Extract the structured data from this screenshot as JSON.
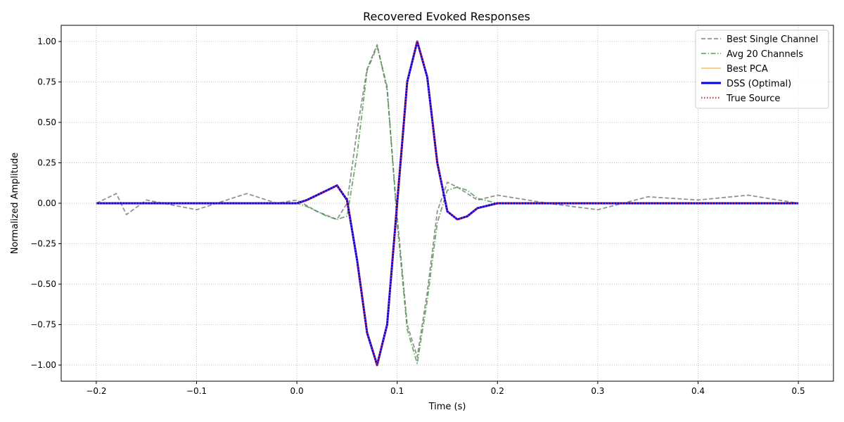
{
  "chart_data": {
    "type": "line",
    "title": "Recovered Evoked Responses",
    "xlabel": "Time (s)",
    "ylabel": "Normalized Amplitude",
    "xlim": [
      -0.235,
      0.535
    ],
    "ylim": [
      -1.1,
      1.1
    ],
    "xticks": [
      -0.2,
      -0.1,
      0.0,
      0.1,
      0.2,
      0.3,
      0.4,
      0.5
    ],
    "xtick_labels": [
      "−0.2",
      "−0.1",
      "0.0",
      "0.1",
      "0.2",
      "0.3",
      "0.4",
      "0.5"
    ],
    "yticks": [
      -1.0,
      -0.75,
      -0.5,
      -0.25,
      0.0,
      0.25,
      0.5,
      0.75,
      1.0
    ],
    "ytick_labels": [
      "−1.00",
      "−0.75",
      "−0.50",
      "−0.25",
      "0.00",
      "0.25",
      "0.50",
      "0.75",
      "1.00"
    ],
    "grid": true,
    "legend_position": "top-right",
    "series": [
      {
        "name": "Best Single Channel",
        "color": "#808080",
        "style": "dashed",
        "x": [
          -0.2,
          -0.18,
          -0.17,
          -0.15,
          -0.1,
          -0.05,
          -0.02,
          0.0,
          0.02,
          0.04,
          0.05,
          0.06,
          0.07,
          0.08,
          0.09,
          0.1,
          0.11,
          0.12,
          0.13,
          0.14,
          0.15,
          0.16,
          0.17,
          0.18,
          0.2,
          0.25,
          0.3,
          0.35,
          0.4,
          0.45,
          0.5
        ],
        "y": [
          0.0,
          0.06,
          -0.07,
          0.02,
          -0.04,
          0.06,
          0.0,
          0.02,
          -0.05,
          -0.1,
          0.0,
          0.45,
          0.83,
          0.98,
          0.7,
          -0.08,
          -0.75,
          -0.95,
          -0.55,
          -0.05,
          0.13,
          0.1,
          0.06,
          0.02,
          0.05,
          0.0,
          -0.04,
          0.04,
          0.02,
          0.05,
          0.0
        ]
      },
      {
        "name": "Avg 20 Channels",
        "color": "#3d8f3d",
        "style": "dashdot",
        "x": [
          -0.2,
          -0.1,
          0.0,
          0.01,
          0.02,
          0.03,
          0.04,
          0.05,
          0.06,
          0.07,
          0.08,
          0.09,
          0.1,
          0.11,
          0.12,
          0.13,
          0.14,
          0.15,
          0.16,
          0.17,
          0.18,
          0.2,
          0.3,
          0.4,
          0.5
        ],
        "y": [
          0.0,
          0.0,
          0.0,
          -0.02,
          -0.05,
          -0.08,
          -0.1,
          -0.08,
          0.3,
          0.82,
          0.97,
          0.72,
          -0.12,
          -0.78,
          -0.99,
          -0.6,
          -0.12,
          0.08,
          0.1,
          0.08,
          0.03,
          0.0,
          0.0,
          0.0,
          0.0
        ]
      },
      {
        "name": "Best PCA",
        "color": "#f5b841",
        "style": "solid",
        "x": [
          -0.2,
          -0.1,
          0.0,
          0.01,
          0.02,
          0.03,
          0.04,
          0.05,
          0.06,
          0.07,
          0.08,
          0.09,
          0.1,
          0.11,
          0.12,
          0.13,
          0.14,
          0.15,
          0.16,
          0.17,
          0.18,
          0.2,
          0.3,
          0.4,
          0.5
        ],
        "y": [
          0.0,
          0.0,
          0.0,
          0.02,
          0.05,
          0.08,
          0.11,
          0.02,
          -0.35,
          -0.8,
          -1.0,
          -0.75,
          0.0,
          0.75,
          1.0,
          0.78,
          0.25,
          -0.05,
          -0.1,
          -0.08,
          -0.03,
          0.0,
          0.0,
          0.0,
          0.0
        ]
      },
      {
        "name": "DSS (Optimal)",
        "color": "#0000ee",
        "style": "solid-thick",
        "x": [
          -0.2,
          -0.1,
          0.0,
          0.01,
          0.02,
          0.03,
          0.04,
          0.05,
          0.06,
          0.07,
          0.08,
          0.09,
          0.1,
          0.11,
          0.12,
          0.13,
          0.14,
          0.15,
          0.16,
          0.17,
          0.18,
          0.2,
          0.3,
          0.4,
          0.5
        ],
        "y": [
          0.0,
          0.0,
          0.0,
          0.02,
          0.05,
          0.08,
          0.11,
          0.02,
          -0.35,
          -0.8,
          -1.0,
          -0.75,
          0.0,
          0.75,
          1.0,
          0.78,
          0.25,
          -0.05,
          -0.1,
          -0.08,
          -0.03,
          0.0,
          0.0,
          0.0,
          0.0
        ]
      },
      {
        "name": "True Source",
        "color": "#e8302e",
        "style": "dotted",
        "x": [
          -0.2,
          -0.1,
          0.0,
          0.01,
          0.02,
          0.03,
          0.04,
          0.05,
          0.06,
          0.07,
          0.08,
          0.09,
          0.1,
          0.11,
          0.12,
          0.13,
          0.14,
          0.15,
          0.16,
          0.17,
          0.18,
          0.2,
          0.3,
          0.4,
          0.5
        ],
        "y": [
          0.0,
          0.0,
          0.0,
          0.02,
          0.05,
          0.08,
          0.11,
          0.02,
          -0.35,
          -0.8,
          -1.0,
          -0.75,
          0.0,
          0.75,
          1.0,
          0.78,
          0.25,
          -0.05,
          -0.1,
          -0.08,
          -0.03,
          0.0,
          0.0,
          0.0,
          0.0
        ]
      }
    ]
  }
}
